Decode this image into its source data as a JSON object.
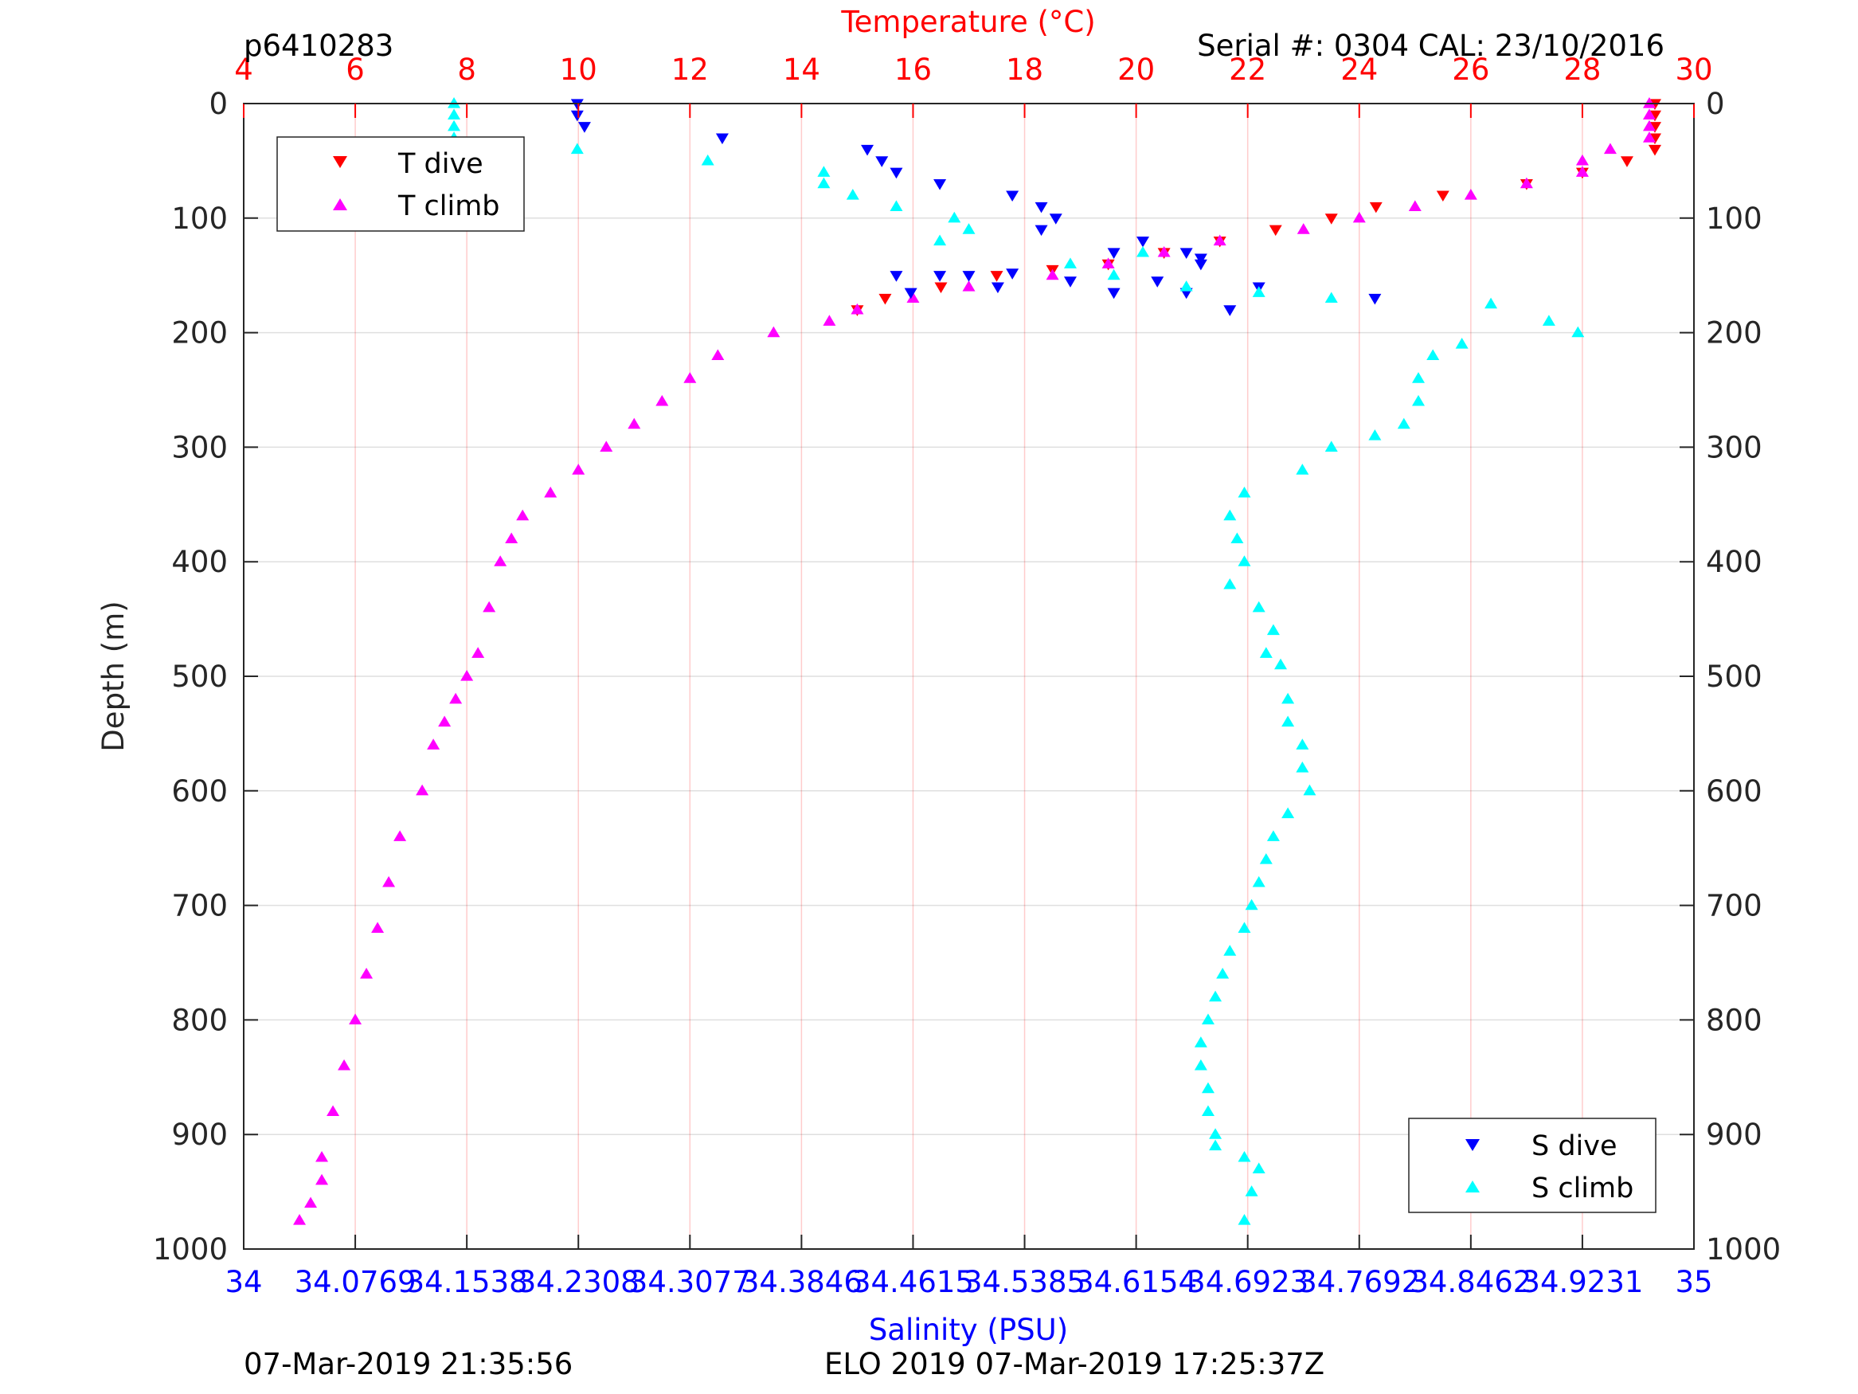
{
  "header": {
    "id_label": "p6410283",
    "serial_label": "Serial #: 0304  CAL: 23/10/2016"
  },
  "footer": {
    "left_timestamp": "07-Mar-2019 21:35:56",
    "mission_label": "ELO 2019 07-Mar-2019 17:25:37Z"
  },
  "chart_data": {
    "type": "scatter",
    "top_axis": {
      "label": "Temperature (°C)",
      "range": [
        4,
        30
      ],
      "ticks": [
        "4",
        "6",
        "8",
        "10",
        "12",
        "14",
        "16",
        "18",
        "20",
        "22",
        "24",
        "26",
        "28",
        "30"
      ],
      "color": "#ff0000"
    },
    "bottom_axis": {
      "label": "Salinity (PSU)",
      "range": [
        34,
        35
      ],
      "ticks": [
        "34",
        "34.0769",
        "34.1538",
        "34.2308",
        "34.3077",
        "34.3846",
        "34.4615",
        "34.5385",
        "34.6154",
        "34.6923",
        "34.7692",
        "34.8462",
        "34.9231",
        "35"
      ],
      "color": "#0000ff"
    },
    "y_axis": {
      "label": "Depth (m)",
      "range": [
        0,
        1000
      ],
      "reversed": true,
      "ticks": [
        "0",
        "100",
        "200",
        "300",
        "400",
        "500",
        "600",
        "700",
        "800",
        "900",
        "1000"
      ]
    },
    "grid": true,
    "legends": [
      {
        "placement": "top-left",
        "entries": [
          "T dive",
          "T climb"
        ]
      },
      {
        "placement": "bottom-right",
        "entries": [
          "S dive",
          "S climb"
        ]
      }
    ],
    "series": [
      {
        "name": "T dive",
        "axis": "temperature",
        "marker": "triangle-down",
        "color": "#ff0000",
        "points": [
          [
            29.3,
            0
          ],
          [
            29.3,
            10
          ],
          [
            29.3,
            20
          ],
          [
            29.3,
            30
          ],
          [
            29.3,
            40
          ],
          [
            28.8,
            50
          ],
          [
            28,
            60
          ],
          [
            27,
            70
          ],
          [
            25.5,
            80
          ],
          [
            24.3,
            90
          ],
          [
            23.5,
            100
          ],
          [
            22.5,
            110
          ],
          [
            21.5,
            120
          ],
          [
            20.5,
            130
          ],
          [
            19.5,
            140
          ],
          [
            18.5,
            145
          ],
          [
            17.5,
            150
          ],
          [
            16.5,
            160
          ],
          [
            15.5,
            170
          ],
          [
            15,
            180
          ]
        ]
      },
      {
        "name": "T climb",
        "axis": "temperature",
        "marker": "triangle-up",
        "color": "#ff00ff",
        "points": [
          [
            29.2,
            0
          ],
          [
            29.2,
            10
          ],
          [
            29.2,
            20
          ],
          [
            29.2,
            30
          ],
          [
            28.5,
            40
          ],
          [
            28,
            50
          ],
          [
            28,
            60
          ],
          [
            27,
            70
          ],
          [
            26,
            80
          ],
          [
            25,
            90
          ],
          [
            24,
            100
          ],
          [
            23,
            110
          ],
          [
            21.5,
            120
          ],
          [
            20.5,
            130
          ],
          [
            19.5,
            140
          ],
          [
            18.5,
            150
          ],
          [
            17,
            160
          ],
          [
            16,
            170
          ],
          [
            15,
            180
          ],
          [
            14.5,
            190
          ],
          [
            13.5,
            200
          ],
          [
            12.5,
            220
          ],
          [
            12,
            240
          ],
          [
            11.5,
            260
          ],
          [
            11,
            280
          ],
          [
            10.5,
            300
          ],
          [
            10,
            320
          ],
          [
            9.5,
            340
          ],
          [
            9,
            360
          ],
          [
            8.8,
            380
          ],
          [
            8.6,
            400
          ],
          [
            8.4,
            440
          ],
          [
            8.2,
            480
          ],
          [
            8,
            500
          ],
          [
            7.8,
            520
          ],
          [
            7.6,
            540
          ],
          [
            7.4,
            560
          ],
          [
            7.2,
            600
          ],
          [
            6.8,
            640
          ],
          [
            6.6,
            680
          ],
          [
            6.4,
            720
          ],
          [
            6.2,
            760
          ],
          [
            6,
            800
          ],
          [
            5.8,
            840
          ],
          [
            5.6,
            880
          ],
          [
            5.4,
            920
          ],
          [
            5.4,
            940
          ],
          [
            5.2,
            960
          ],
          [
            5,
            975
          ]
        ]
      },
      {
        "name": "S dive",
        "axis": "salinity",
        "marker": "triangle-down",
        "color": "#0000ff",
        "points": [
          [
            34.23,
            0
          ],
          [
            34.23,
            10
          ],
          [
            34.235,
            20
          ],
          [
            34.33,
            30
          ],
          [
            34.43,
            40
          ],
          [
            34.44,
            50
          ],
          [
            34.45,
            60
          ],
          [
            34.48,
            70
          ],
          [
            34.53,
            80
          ],
          [
            34.55,
            90
          ],
          [
            34.56,
            100
          ],
          [
            34.55,
            110
          ],
          [
            34.62,
            120
          ],
          [
            34.65,
            130
          ],
          [
            34.66,
            140
          ],
          [
            34.48,
            150
          ],
          [
            34.52,
            160
          ],
          [
            34.6,
            165
          ],
          [
            34.7,
            160
          ],
          [
            34.78,
            170
          ],
          [
            34.63,
            155
          ],
          [
            34.68,
            180
          ],
          [
            34.53,
            148
          ],
          [
            34.46,
            165
          ],
          [
            34.57,
            155
          ],
          [
            34.65,
            165
          ],
          [
            34.45,
            150
          ],
          [
            34.5,
            150
          ],
          [
            34.6,
            130
          ],
          [
            34.66,
            135
          ]
        ]
      },
      {
        "name": "S climb",
        "axis": "salinity",
        "marker": "triangle-up",
        "color": "#00ffff",
        "points": [
          [
            34.145,
            0
          ],
          [
            34.145,
            10
          ],
          [
            34.145,
            20
          ],
          [
            34.145,
            30
          ],
          [
            34.23,
            40
          ],
          [
            34.32,
            50
          ],
          [
            34.4,
            60
          ],
          [
            34.4,
            70
          ],
          [
            34.42,
            80
          ],
          [
            34.45,
            90
          ],
          [
            34.49,
            100
          ],
          [
            34.5,
            110
          ],
          [
            34.48,
            120
          ],
          [
            34.57,
            140
          ],
          [
            34.6,
            150
          ],
          [
            34.62,
            130
          ],
          [
            34.65,
            160
          ],
          [
            34.7,
            165
          ],
          [
            34.75,
            170
          ],
          [
            34.86,
            175
          ],
          [
            34.9,
            190
          ],
          [
            34.92,
            200
          ],
          [
            34.84,
            210
          ],
          [
            34.82,
            220
          ],
          [
            34.81,
            240
          ],
          [
            34.81,
            260
          ],
          [
            34.8,
            280
          ],
          [
            34.78,
            290
          ],
          [
            34.75,
            300
          ],
          [
            34.73,
            320
          ],
          [
            34.69,
            340
          ],
          [
            34.68,
            360
          ],
          [
            34.685,
            380
          ],
          [
            34.69,
            400
          ],
          [
            34.68,
            420
          ],
          [
            34.7,
            440
          ],
          [
            34.71,
            460
          ],
          [
            34.705,
            480
          ],
          [
            34.715,
            490
          ],
          [
            34.72,
            520
          ],
          [
            34.72,
            540
          ],
          [
            34.73,
            560
          ],
          [
            34.73,
            580
          ],
          [
            34.735,
            600
          ],
          [
            34.72,
            620
          ],
          [
            34.71,
            640
          ],
          [
            34.705,
            660
          ],
          [
            34.7,
            680
          ],
          [
            34.695,
            700
          ],
          [
            34.69,
            720
          ],
          [
            34.68,
            740
          ],
          [
            34.675,
            760
          ],
          [
            34.67,
            780
          ],
          [
            34.665,
            800
          ],
          [
            34.66,
            820
          ],
          [
            34.66,
            840
          ],
          [
            34.665,
            860
          ],
          [
            34.665,
            880
          ],
          [
            34.67,
            900
          ],
          [
            34.67,
            910
          ],
          [
            34.69,
            920
          ],
          [
            34.7,
            930
          ],
          [
            34.695,
            950
          ],
          [
            34.69,
            975
          ]
        ]
      }
    ]
  }
}
